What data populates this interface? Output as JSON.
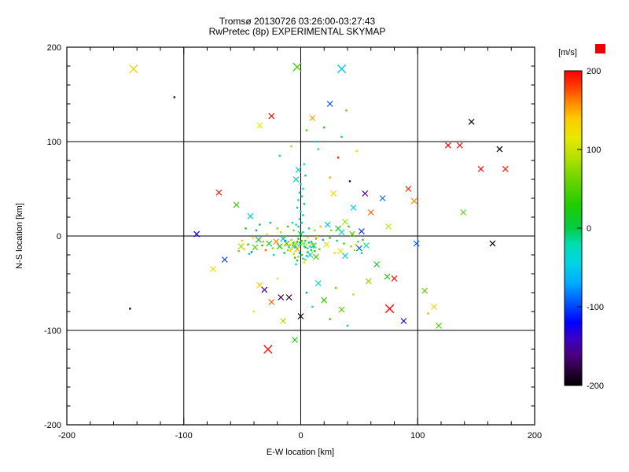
{
  "chart_data": {
    "type": "scatter",
    "title": "Tromsø 20130726 03:26:00-03:27:43",
    "subtitle": "RwPretec (8p) EXPERIMENTAL SKYMAP",
    "xlabel": "E-W location [km]",
    "ylabel": "N-S location [km]",
    "xlim": [
      -200,
      200
    ],
    "ylim": [
      -200,
      200
    ],
    "major_ticks": [
      -200,
      -100,
      0,
      100,
      200
    ],
    "minor_tick_step": 20,
    "grid_lines": [
      -100,
      0,
      100
    ],
    "grid": true,
    "marker": "x",
    "frame_color": "#000000",
    "color_scale": {
      "label": "[m/s]",
      "vmin": -200,
      "vmax": 200,
      "ticks": [
        200,
        100,
        0,
        -100,
        -200
      ],
      "swatch_color": "#ee0000",
      "stops": [
        [
          -200,
          "#000000"
        ],
        [
          -180,
          "#2a0040"
        ],
        [
          -160,
          "#4b0082"
        ],
        [
          -140,
          "#3a00c8"
        ],
        [
          -120,
          "#0000ff"
        ],
        [
          -95,
          "#0055ff"
        ],
        [
          -70,
          "#00aaff"
        ],
        [
          -45,
          "#00d4e6"
        ],
        [
          -20,
          "#00ddb0"
        ],
        [
          0,
          "#00cc44"
        ],
        [
          30,
          "#22cc00"
        ],
        [
          60,
          "#66d400"
        ],
        [
          90,
          "#b4e000"
        ],
        [
          115,
          "#e8e800"
        ],
        [
          140,
          "#ffc800"
        ],
        [
          160,
          "#ff8800"
        ],
        [
          180,
          "#ff3c00"
        ],
        [
          200,
          "#ff0000"
        ]
      ]
    },
    "points_format": [
      "x_km",
      "y_km",
      "velocity_ms",
      "size"
    ],
    "points": [
      [
        -143,
        177,
        130,
        3
      ],
      [
        -3,
        179,
        45,
        3
      ],
      [
        35,
        177,
        -50,
        3
      ],
      [
        -108,
        147,
        -185,
        1
      ],
      [
        -25,
        127,
        195,
        2
      ],
      [
        10,
        125,
        155,
        2
      ],
      [
        25,
        140,
        -95,
        2
      ],
      [
        39,
        133,
        60,
        1
      ],
      [
        -35,
        117,
        115,
        2
      ],
      [
        146,
        121,
        -195,
        2
      ],
      [
        126,
        96,
        200,
        2
      ],
      [
        136,
        96,
        195,
        2
      ],
      [
        170,
        92,
        -200,
        2
      ],
      [
        154,
        71,
        195,
        2
      ],
      [
        175,
        71,
        190,
        2
      ],
      [
        92,
        50,
        190,
        2
      ],
      [
        97,
        37,
        160,
        2
      ],
      [
        139,
        25,
        55,
        2
      ],
      [
        164,
        -8,
        -200,
        2
      ],
      [
        99,
        -8,
        -90,
        2
      ],
      [
        74,
        -43,
        30,
        2
      ],
      [
        114,
        -75,
        130,
        2
      ],
      [
        106,
        -58,
        60,
        2
      ],
      [
        76,
        -77,
        200,
        3
      ],
      [
        -146,
        -77,
        -190,
        1
      ],
      [
        118,
        -95,
        45,
        2
      ],
      [
        88,
        -90,
        -130,
        2
      ],
      [
        109,
        -82,
        150,
        1
      ],
      [
        -28,
        -120,
        195,
        3
      ],
      [
        -89,
        2,
        -120,
        2
      ],
      [
        -70,
        46,
        190,
        2
      ],
      [
        -55,
        33,
        40,
        2
      ],
      [
        -43,
        21,
        -55,
        2
      ],
      [
        -65,
        -25,
        -100,
        2
      ],
      [
        -75,
        -35,
        130,
        2
      ],
      [
        60,
        25,
        170,
        2
      ],
      [
        65,
        -30,
        15,
        2
      ],
      [
        70,
        40,
        -85,
        2
      ],
      [
        75,
        10,
        95,
        2
      ],
      [
        80,
        -45,
        200,
        2
      ],
      [
        55,
        45,
        -150,
        2
      ],
      [
        58,
        -48,
        75,
        2
      ],
      [
        5,
        112,
        50,
        1
      ],
      [
        15,
        92,
        -45,
        1
      ],
      [
        32,
        83,
        190,
        1
      ],
      [
        25,
        62,
        150,
        1
      ],
      [
        42,
        58,
        -175,
        1
      ],
      [
        12,
        100,
        -30,
        1
      ],
      [
        -8,
        95,
        80,
        1
      ],
      [
        20,
        115,
        20,
        1
      ],
      [
        35,
        105,
        -60,
        1
      ],
      [
        48,
        90,
        110,
        1
      ],
      [
        -18,
        85,
        -20,
        1
      ],
      [
        28,
        45,
        130,
        2
      ],
      [
        45,
        30,
        -40,
        2
      ],
      [
        38,
        15,
        85,
        2
      ],
      [
        52,
        5,
        -110,
        2
      ],
      [
        -2,
        10,
        -30,
        1
      ],
      [
        1,
        14,
        -50,
        1
      ],
      [
        -1,
        18,
        -20,
        1
      ],
      [
        2,
        22,
        -60,
        1
      ],
      [
        0,
        26,
        -40,
        1
      ],
      [
        -3,
        30,
        -10,
        1
      ],
      [
        3,
        34,
        -70,
        1
      ],
      [
        -2,
        38,
        -30,
        1
      ],
      [
        1,
        42,
        -55,
        1
      ],
      [
        -1,
        46,
        -25,
        1
      ],
      [
        2,
        50,
        -45,
        1
      ],
      [
        0,
        55,
        -35,
        1
      ],
      [
        -4,
        60,
        -15,
        2
      ],
      [
        4,
        64,
        -65,
        1
      ],
      [
        -2,
        70,
        -40,
        2
      ],
      [
        3,
        76,
        -20,
        1
      ],
      [
        -5,
        -10,
        60,
        2
      ],
      [
        0,
        2,
        10,
        2
      ],
      [
        -3,
        -14,
        150,
        2
      ],
      [
        -12,
        -8,
        45,
        2
      ],
      [
        11,
        -10,
        15,
        2
      ],
      [
        -15,
        -3,
        -60,
        2
      ],
      [
        -18,
        -11,
        25,
        2
      ],
      [
        22,
        -9,
        110,
        2
      ],
      [
        8,
        -20,
        -50,
        2
      ],
      [
        -21,
        -6,
        160,
        2
      ],
      [
        17,
        10,
        145,
        1
      ],
      [
        -27,
        -8,
        20,
        2
      ],
      [
        13,
        -22,
        50,
        2
      ],
      [
        23,
        12,
        -55,
        2
      ],
      [
        34,
        -16,
        120,
        2
      ],
      [
        -36,
        -4,
        10,
        2
      ],
      [
        29,
        -18,
        135,
        1
      ],
      [
        -39,
        -12,
        55,
        2
      ],
      [
        32,
        8,
        25,
        2
      ],
      [
        35,
        4,
        -30,
        2
      ],
      [
        38,
        -21,
        -45,
        2
      ],
      [
        -48,
        -14,
        115,
        1
      ],
      [
        44,
        2,
        50,
        2
      ],
      [
        50,
        -13,
        -90,
        2
      ],
      [
        -51,
        -11,
        85,
        2
      ],
      [
        56,
        -10,
        -25,
        2
      ],
      [
        -2,
        -3,
        20,
        1
      ],
      [
        1,
        -5,
        40,
        1
      ],
      [
        3,
        -8,
        -30,
        1
      ],
      [
        2,
        4,
        -20,
        1
      ],
      [
        -8,
        -4,
        90,
        1
      ],
      [
        6,
        -2,
        120,
        1
      ],
      [
        4,
        -12,
        30,
        1
      ],
      [
        9,
        -6,
        -45,
        1
      ],
      [
        -6,
        6,
        70,
        1
      ],
      [
        14,
        -1,
        100,
        1
      ],
      [
        -9,
        -16,
        130,
        1
      ],
      [
        7,
        8,
        -15,
        1
      ],
      [
        16,
        -14,
        55,
        1
      ],
      [
        -4,
        12,
        -35,
        1
      ],
      [
        12,
        6,
        85,
        1
      ],
      [
        19,
        -4,
        -70,
        1
      ],
      [
        -11,
        10,
        40,
        1
      ],
      [
        -14,
        -18,
        5,
        1
      ],
      [
        -24,
        -13,
        75,
        1
      ],
      [
        25,
        -2,
        35,
        1
      ],
      [
        -7,
        14,
        -25,
        1
      ],
      [
        -17,
        4,
        95,
        1
      ],
      [
        -30,
        -15,
        170,
        1
      ],
      [
        31,
        -5,
        -10,
        1
      ],
      [
        -20,
        8,
        65,
        1
      ],
      [
        -33,
        -10,
        30,
        1
      ],
      [
        -23,
        -20,
        -40,
        1
      ],
      [
        26,
        6,
        80,
        1
      ],
      [
        37,
        -8,
        45,
        1
      ],
      [
        -26,
        14,
        -65,
        1
      ],
      [
        -29,
        2,
        105,
        1
      ],
      [
        -42,
        -17,
        -85,
        1
      ],
      [
        43,
        -11,
        70,
        1
      ],
      [
        -32,
        -6,
        150,
        1
      ],
      [
        -45,
        -9,
        40,
        1
      ],
      [
        46,
        -15,
        90,
        1
      ],
      [
        -35,
        12,
        15,
        1
      ],
      [
        49,
        -6,
        60,
        1
      ],
      [
        -38,
        6,
        -75,
        1
      ],
      [
        41,
        10,
        30,
        1
      ],
      [
        52,
        -18,
        -15,
        1
      ],
      [
        -41,
        -2,
        125,
        1
      ],
      [
        -44,
        -19,
        -55,
        1
      ],
      [
        47,
        -9,
        95,
        1
      ],
      [
        -47,
        8,
        20,
        1
      ],
      [
        -50,
        -5,
        140,
        1
      ],
      [
        53,
        -4,
        35,
        1
      ],
      [
        -53,
        -16,
        65,
        1
      ],
      [
        -1,
        -7,
        -10,
        1
      ],
      [
        0,
        -9,
        30,
        1
      ],
      [
        1,
        -6,
        70,
        1
      ],
      [
        -2,
        -10,
        -40,
        1
      ],
      [
        2,
        -8,
        100,
        1
      ],
      [
        -3,
        -6,
        50,
        1
      ],
      [
        3,
        -11,
        -20,
        1
      ],
      [
        -4,
        -8,
        80,
        1
      ],
      [
        4,
        -5,
        20,
        1
      ],
      [
        -5,
        -12,
        -60,
        1
      ],
      [
        5,
        -9,
        120,
        1
      ],
      [
        -6,
        -7,
        40,
        1
      ],
      [
        6,
        -13,
        -30,
        1
      ],
      [
        -7,
        -10,
        60,
        1
      ],
      [
        7,
        -7,
        10,
        1
      ],
      [
        -8,
        -14,
        90,
        1
      ],
      [
        8,
        -11,
        -50,
        1
      ],
      [
        -9,
        -9,
        140,
        1
      ],
      [
        9,
        -15,
        30,
        1
      ],
      [
        -10,
        -12,
        -15,
        1
      ],
      [
        10,
        -8,
        55,
        1
      ],
      [
        -11,
        -15,
        75,
        1
      ],
      [
        11,
        -12,
        -35,
        1
      ],
      [
        -12,
        -10,
        110,
        1
      ],
      [
        12,
        -16,
        25,
        1
      ],
      [
        -1,
        -18,
        -70,
        1
      ],
      [
        1,
        -20,
        45,
        1
      ],
      [
        -2,
        -22,
        85,
        1
      ],
      [
        2,
        -24,
        -25,
        1
      ],
      [
        -3,
        -26,
        15,
        1
      ],
      [
        3,
        -28,
        130,
        1
      ],
      [
        -4,
        -30,
        -45,
        1
      ],
      [
        4,
        -25,
        65,
        1
      ],
      [
        -5,
        -23,
        35,
        1
      ],
      [
        5,
        -21,
        -55,
        1
      ],
      [
        -6,
        -19,
        95,
        1
      ],
      [
        6,
        -17,
        5,
        1
      ],
      [
        -13,
        -5,
        -80,
        1
      ],
      [
        13,
        -3,
        160,
        1
      ],
      [
        -14,
        -1,
        50,
        1
      ],
      [
        -20,
        -45,
        110,
        1
      ],
      [
        15,
        -50,
        -30,
        2
      ],
      [
        30,
        -55,
        60,
        1
      ],
      [
        -35,
        -52,
        140,
        2
      ],
      [
        5,
        -60,
        -80,
        1
      ],
      [
        -10,
        -65,
        -180,
        2
      ],
      [
        20,
        -68,
        35,
        2
      ],
      [
        45,
        -62,
        90,
        1
      ],
      [
        -25,
        -70,
        170,
        2
      ],
      [
        10,
        -75,
        -20,
        1
      ],
      [
        35,
        -78,
        55,
        2
      ],
      [
        -40,
        -80,
        120,
        1
      ],
      [
        0,
        -85,
        -190,
        2
      ],
      [
        25,
        -88,
        35,
        1
      ],
      [
        -15,
        -90,
        85,
        2
      ],
      [
        40,
        -95,
        -60,
        1
      ],
      [
        -17,
        -65,
        -180,
        2
      ],
      [
        -31,
        -57,
        -160,
        2
      ],
      [
        -5,
        -110,
        25,
        2
      ]
    ]
  }
}
